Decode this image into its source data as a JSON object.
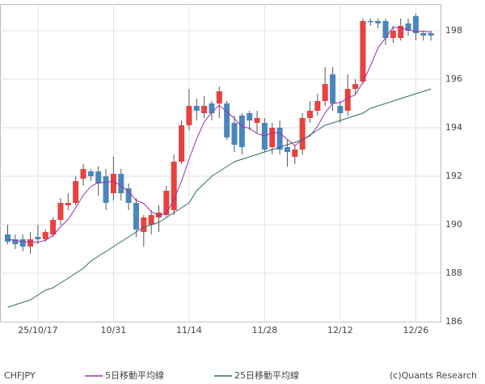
{
  "chart_data": {
    "type": "candlestick",
    "symbol": "CHFJPY",
    "credit": "(c)Quants Research",
    "categories": [
      null,
      null,
      null,
      null,
      "25/10/17",
      null,
      null,
      null,
      null,
      null,
      null,
      null,
      null,
      null,
      "10/31",
      null,
      null,
      null,
      null,
      null,
      null,
      null,
      null,
      null,
      "11/14",
      null,
      null,
      null,
      null,
      null,
      null,
      null,
      null,
      null,
      "11/28",
      null,
      null,
      null,
      null,
      null,
      null,
      null,
      null,
      null,
      "12/12",
      null,
      null,
      null,
      null,
      null,
      null,
      null,
      null,
      null,
      "12/26",
      null,
      null
    ],
    "open": [
      189.6,
      189.4,
      189.4,
      189.1,
      189.5,
      189.4,
      189.6,
      190.2,
      190.8,
      190.9,
      191.9,
      192.2,
      192.2,
      192.0,
      191.3,
      192.1,
      191.5,
      190.9,
      189.7,
      190.0,
      190.3,
      190.4,
      190.6,
      192.6,
      194.1,
      194.9,
      194.6,
      195.0,
      195.0,
      195.0,
      194.2,
      194.5,
      194.6,
      194.2,
      194.2,
      193.2,
      194.0,
      193.2,
      192.8,
      193.1,
      194.4,
      194.7,
      195.1,
      196.2,
      194.9,
      194.7,
      195.6,
      195.9,
      198.4,
      198.4,
      198.4,
      197.7,
      197.7,
      198.3,
      198.6,
      197.9,
      197.9
    ],
    "high": [
      190.0,
      189.6,
      189.6,
      189.7,
      190.0,
      189.8,
      190.3,
      191.1,
      191.3,
      192.0,
      192.5,
      192.3,
      192.4,
      192.3,
      192.8,
      192.3,
      191.7,
      191.1,
      190.4,
      190.6,
      190.8,
      191.6,
      192.9,
      194.3,
      195.6,
      195.2,
      195.3,
      195.1,
      195.7,
      195.1,
      194.5,
      194.6,
      194.7,
      194.7,
      194.4,
      194.2,
      194.3,
      193.5,
      193.3,
      194.6,
      195.1,
      195.4,
      196.5,
      196.5,
      195.1,
      196.2,
      196.0,
      198.5,
      198.5,
      198.5,
      198.5,
      198.2,
      198.5,
      198.5,
      198.7,
      198.0,
      198.0
    ],
    "low": [
      189.2,
      189.0,
      188.9,
      188.8,
      189.2,
      189.3,
      189.5,
      190.0,
      190.6,
      190.8,
      191.6,
      191.8,
      191.2,
      190.6,
      191.0,
      191.0,
      190.6,
      189.5,
      189.1,
      189.6,
      189.7,
      190.3,
      190.4,
      192.5,
      193.9,
      194.3,
      194.4,
      194.3,
      194.4,
      193.5,
      193.0,
      192.9,
      193.9,
      193.8,
      193.0,
      192.9,
      192.9,
      192.4,
      192.5,
      192.9,
      194.2,
      194.5,
      194.9,
      194.7,
      194.2,
      194.5,
      195.4,
      195.8,
      198.2,
      198.1,
      197.4,
      197.5,
      197.6,
      197.8,
      197.6,
      197.6,
      197.6
    ],
    "close": [
      189.3,
      189.2,
      189.1,
      189.4,
      189.4,
      189.7,
      190.2,
      190.9,
      190.9,
      191.8,
      192.3,
      192.0,
      191.7,
      190.9,
      192.1,
      191.3,
      190.9,
      189.8,
      190.3,
      190.4,
      190.5,
      191.4,
      192.6,
      194.1,
      194.9,
      194.7,
      194.9,
      194.6,
      195.5,
      193.6,
      193.3,
      193.2,
      194.3,
      194.4,
      193.1,
      194.0,
      193.1,
      193.0,
      193.1,
      194.4,
      194.7,
      195.1,
      195.8,
      195.0,
      194.6,
      195.6,
      195.8,
      198.4,
      198.35,
      198.3,
      197.7,
      198.0,
      198.2,
      198.0,
      197.9,
      197.8,
      197.8
    ],
    "up_color": "#e8413e",
    "down_color": "#4a86bd",
    "series": [
      {
        "name": "5日移動平均線",
        "color": "#9b30a8",
        "values": [
          189.4,
          189.35,
          189.3,
          189.3,
          189.28,
          189.36,
          189.56,
          189.92,
          190.22,
          190.7,
          191.22,
          191.58,
          191.74,
          191.74,
          191.8,
          191.6,
          191.38,
          191.0,
          190.88,
          190.54,
          190.38,
          190.48,
          191.04,
          191.8,
          192.7,
          193.54,
          194.24,
          194.64,
          194.92,
          194.66,
          194.38,
          194.04,
          193.98,
          193.76,
          193.66,
          193.8,
          193.78,
          193.52,
          193.26,
          193.52,
          193.66,
          194.06,
          194.62,
          195.0,
          195.04,
          195.22,
          195.36,
          195.88,
          196.55,
          197.29,
          197.71,
          198.15,
          198.11,
          198.04,
          197.96,
          197.98,
          197.94
        ]
      },
      {
        "name": "25日移動平均線",
        "color": "#2e6b6b",
        "values": [
          186.6,
          186.7,
          186.8,
          186.9,
          187.1,
          187.3,
          187.4,
          187.6,
          187.8,
          188.0,
          188.2,
          188.5,
          188.7,
          188.9,
          189.1,
          189.3,
          189.5,
          189.7,
          189.9,
          190.0,
          190.1,
          190.3,
          190.5,
          190.7,
          190.9,
          191.4,
          191.7,
          192.0,
          192.2,
          192.4,
          192.6,
          192.7,
          192.8,
          192.9,
          193.0,
          193.1,
          193.2,
          193.3,
          193.4,
          193.5,
          193.7,
          193.9,
          194.1,
          194.2,
          194.3,
          194.4,
          194.5,
          194.6,
          194.8,
          194.9,
          195.0,
          195.1,
          195.2,
          195.3,
          195.4,
          195.5,
          195.6
        ]
      }
    ],
    "ylim": [
      186,
      199.1
    ],
    "yticks": [
      186,
      188,
      190,
      192,
      194,
      196,
      198
    ],
    "grid": true
  }
}
